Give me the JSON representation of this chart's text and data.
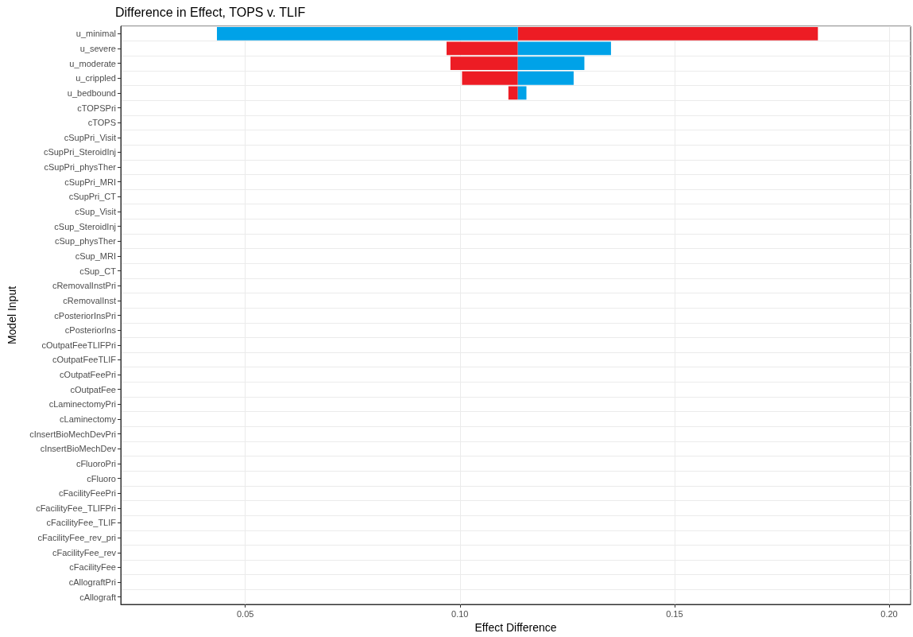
{
  "chart_data": {
    "type": "bar",
    "orientation": "horizontal",
    "title": "Difference in Effect, TOPS v. TLIF",
    "xlabel": "Effect Difference",
    "ylabel": "Model Input",
    "categories": [
      "u_minimal",
      "u_severe",
      "u_moderate",
      "u_crippled",
      "u_bedbound",
      "cTOPSPri",
      "cTOPS",
      "cSupPri_Visit",
      "cSupPri_SteroidInj",
      "cSupPri_physTher",
      "cSupPri_MRI",
      "cSupPri_CT",
      "cSup_Visit",
      "cSup_SteroidInj",
      "cSup_physTher",
      "cSup_MRI",
      "cSup_CT",
      "cRemovalInstPri",
      "cRemovalInst",
      "cPosteriorInsPri",
      "cPosteriorIns",
      "cOutpatFeeTLIFPri",
      "cOutpatFeeTLIF",
      "cOutpatFeePri",
      "cOutpatFee",
      "cLaminectomyPri",
      "cLaminectomy",
      "cInsertBioMechDevPri",
      "cInsertBioMechDev",
      "cFluoroPri",
      "cFluoro",
      "cFacilityFeePri",
      "cFacilityFee_TLIFPri",
      "cFacilityFee_TLIF",
      "cFacilityFee_rev_pri",
      "cFacilityFee_rev",
      "cFacilityFee",
      "cAllograftPri",
      "cAllograft"
    ],
    "series": [
      {
        "color": "#ed1c24",
        "base": [
          0.1135,
          0.0969,
          0.0978,
          0.1005,
          0.1113,
          null,
          null,
          null,
          null,
          null,
          null,
          null,
          null,
          null,
          null,
          null,
          null,
          null,
          null,
          null,
          null,
          null,
          null,
          null,
          null,
          null,
          null,
          null,
          null,
          null,
          null,
          null,
          null,
          null,
          null,
          null,
          null,
          null,
          null
        ],
        "values": [
          0.0699,
          0.0166,
          0.0157,
          0.013,
          0.0022,
          null,
          null,
          null,
          null,
          null,
          null,
          null,
          null,
          null,
          null,
          null,
          null,
          null,
          null,
          null,
          null,
          null,
          null,
          null,
          null,
          null,
          null,
          null,
          null,
          null,
          null,
          null,
          null,
          null,
          null,
          null,
          null,
          null,
          null
        ]
      },
      {
        "color": "#00a2e8",
        "base": [
          0.0434,
          0.1135,
          0.1135,
          0.1135,
          0.1135,
          null,
          null,
          null,
          null,
          null,
          null,
          null,
          null,
          null,
          null,
          null,
          null,
          null,
          null,
          null,
          null,
          null,
          null,
          null,
          null,
          null,
          null,
          null,
          null,
          null,
          null,
          null,
          null,
          null,
          null,
          null,
          null,
          null,
          null
        ],
        "values": [
          0.0701,
          0.0217,
          0.0155,
          0.013,
          0.002,
          null,
          null,
          null,
          null,
          null,
          null,
          null,
          null,
          null,
          null,
          null,
          null,
          null,
          null,
          null,
          null,
          null,
          null,
          null,
          null,
          null,
          null,
          null,
          null,
          null,
          null,
          null,
          null,
          null,
          null,
          null,
          null,
          null,
          null
        ]
      }
    ],
    "xlim": [
      0.021,
      0.205
    ],
    "xticks": [
      {
        "value": 0.05,
        "label": "0.05"
      },
      {
        "value": 0.1,
        "label": "0.10"
      },
      {
        "value": 0.15,
        "label": "0.15"
      },
      {
        "value": 0.2,
        "label": "0.20"
      }
    ],
    "grid": true
  }
}
